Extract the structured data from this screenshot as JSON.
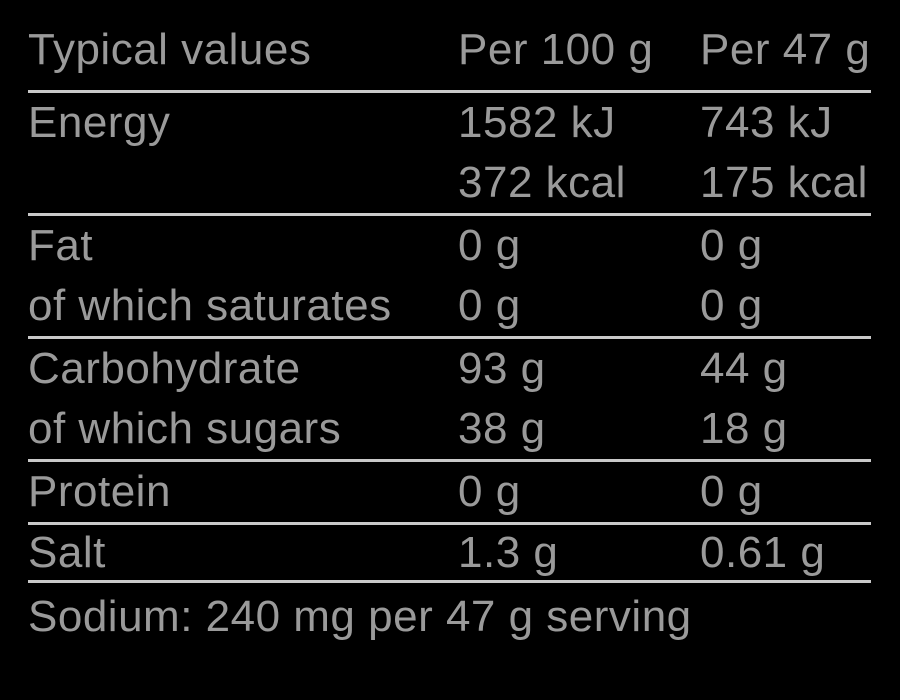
{
  "colors": {
    "background": "#000000",
    "text": "#9a9a9a",
    "rule": "#c9c9c9"
  },
  "table": {
    "header": {
      "label": "Typical values",
      "per100": "Per 100 g",
      "per47": "Per 47 g"
    },
    "groups": [
      {
        "rows": [
          {
            "label": "Energy",
            "per100": "1582 kJ",
            "per47": "743 kJ"
          },
          {
            "label": "",
            "per100": "372 kcal",
            "per47": "175 kcal"
          }
        ]
      },
      {
        "rows": [
          {
            "label": "Fat",
            "per100": "0 g",
            "per47": "0 g"
          },
          {
            "label": "of which saturates",
            "per100": "0 g",
            "per47": "0 g"
          }
        ]
      },
      {
        "rows": [
          {
            "label": "Carbohydrate",
            "per100": "93 g",
            "per47": "44 g"
          },
          {
            "label": "of which sugars",
            "per100": "38 g",
            "per47": "18 g"
          }
        ]
      },
      {
        "rows": [
          {
            "label": "Protein",
            "per100": "0 g",
            "per47": "0 g"
          }
        ]
      },
      {
        "rows": [
          {
            "label": "Salt",
            "per100": "1.3 g",
            "per47": "0.61 g"
          }
        ]
      }
    ],
    "footnote": "Sodium: 240 mg per 47 g serving"
  }
}
